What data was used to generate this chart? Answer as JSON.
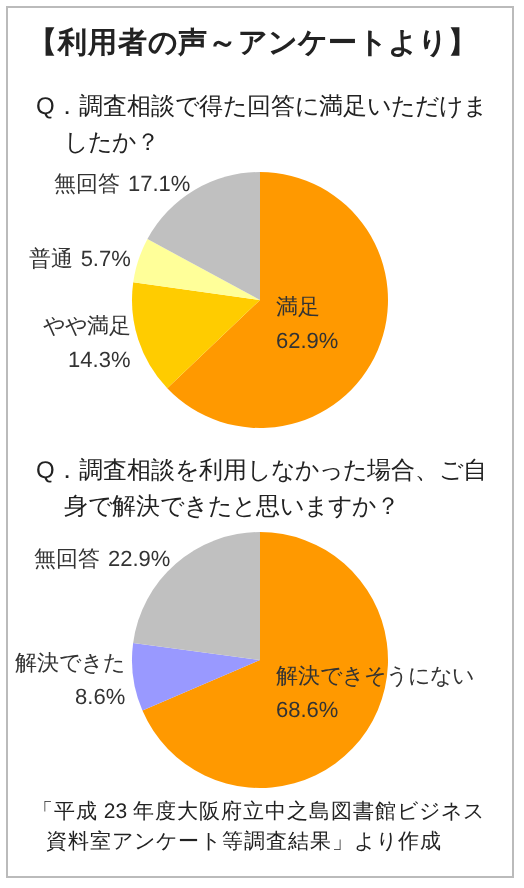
{
  "chart_data": [
    {
      "type": "pie",
      "title": "【利用者の声～アンケートより】",
      "subtitle": "Q．調査相談で得た回答に満足いただけましたか？",
      "categories": [
        "満足",
        "やや満足",
        "普通",
        "無回答"
      ],
      "values": [
        62.9,
        14.3,
        5.7,
        17.1
      ],
      "colors": [
        "#ff9900",
        "#ffcc00",
        "#ffff99",
        "#c0c0c0"
      ],
      "value_labels": [
        "62.9%",
        "14.3%",
        "5.7%",
        "17.1%"
      ]
    },
    {
      "type": "pie",
      "subtitle": "Q．調査相談を利用しなかった場合、ご自身で解決できたと思いますか？",
      "categories": [
        "解決できそうにない",
        "解決できた",
        "無回答"
      ],
      "values": [
        68.6,
        8.6,
        22.9
      ],
      "colors": [
        "#ff9900",
        "#9999ff",
        "#c0c0c0"
      ],
      "value_labels": [
        "68.6%",
        "8.6%",
        "22.9%"
      ],
      "annotations": [
        "「平成 23 年度大阪府立中之島図書館ビジネス資料室アンケート等調査結果」より作成"
      ]
    }
  ]
}
